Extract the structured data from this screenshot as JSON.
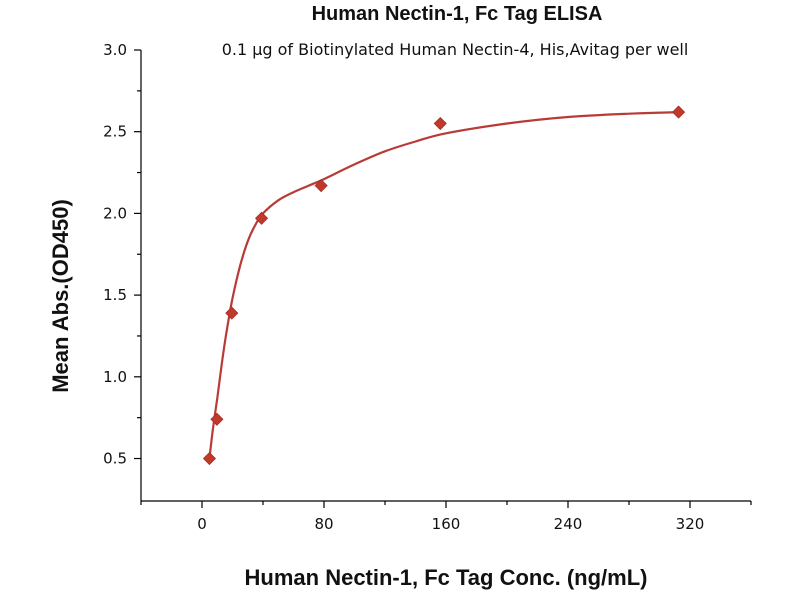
{
  "chart_data": {
    "type": "scatter",
    "title": "Human Nectin-1, Fc Tag ELISA",
    "subtitle": "0.1 μg of Biotinylated Human Nectin-4, His,Avitag per well",
    "xlabel": "Human Nectin-1, Fc Tag Conc. (ng/mL)",
    "ylabel": "Mean Abs.(OD450)",
    "xlim": [
      -40,
      360
    ],
    "ylim": [
      0.24,
      3.0
    ],
    "x_ticks": [
      0,
      80,
      160,
      240,
      320
    ],
    "x_tick_labels": [
      "0",
      "80",
      "160",
      "240",
      "320"
    ],
    "y_ticks": [
      0.5,
      1.0,
      1.5,
      2.0,
      2.5,
      3.0
    ],
    "y_tick_labels": [
      "0.5",
      "1.0",
      "1.5",
      "2.0",
      "2.5",
      "3.0"
    ],
    "grid": false,
    "point_color": "#c0392b",
    "curve_color": "#b83b36",
    "marker": "diamond",
    "x": [
      4.88,
      9.77,
      19.53,
      39.06,
      78.13,
      156.25,
      312.5
    ],
    "y": [
      0.5,
      0.74,
      1.39,
      1.97,
      2.17,
      2.55,
      2.62
    ],
    "fit_curve": {
      "x": [
        4.88,
        7,
        10,
        13,
        16,
        20,
        25,
        30,
        35,
        40,
        50,
        60,
        70,
        80,
        100,
        120,
        140,
        160,
        200,
        240,
        280,
        312.5
      ],
      "y": [
        0.5,
        0.67,
        0.87,
        1.08,
        1.27,
        1.48,
        1.68,
        1.83,
        1.93,
        2.0,
        2.08,
        2.13,
        2.17,
        2.21,
        2.3,
        2.38,
        2.44,
        2.49,
        2.55,
        2.59,
        2.61,
        2.62
      ]
    }
  }
}
